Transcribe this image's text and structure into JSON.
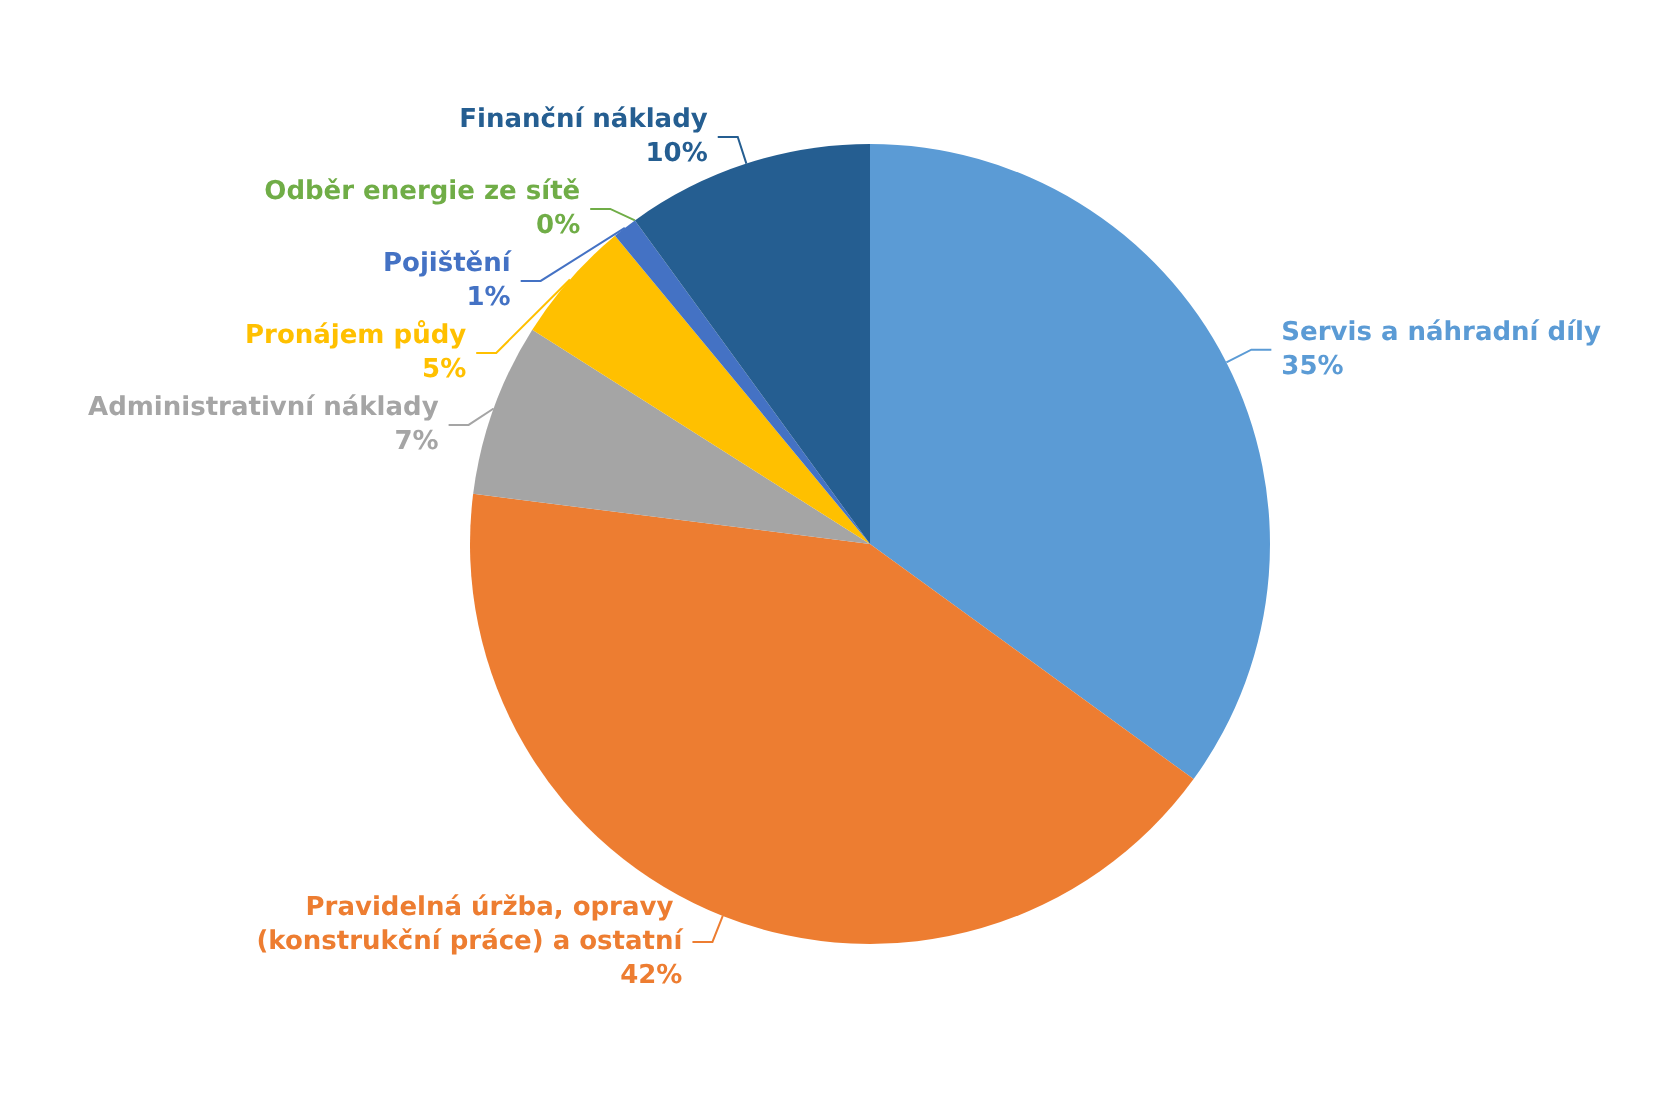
{
  "chart_data": {
    "type": "pie",
    "categories": [
      "Servis a náhradní díly",
      "Pravidelná úržba, opravy (konstrukční práce) a ostatní",
      "Administrativní náklady",
      "Pronájem půdy",
      "Pojištění",
      "Odběr energie ze sítě",
      "Finanční náklady"
    ],
    "values": [
      35,
      42,
      7,
      5,
      1,
      0,
      10
    ],
    "value_labels": [
      "35%",
      "42%",
      "7%",
      "5%",
      "1%",
      "0%",
      "10%"
    ],
    "colors": [
      "#5b9bd5",
      "#ed7d31",
      "#a5a5a5",
      "#ffc000",
      "#4472c4",
      "#70ad47",
      "#255e91"
    ],
    "legend": false
  }
}
